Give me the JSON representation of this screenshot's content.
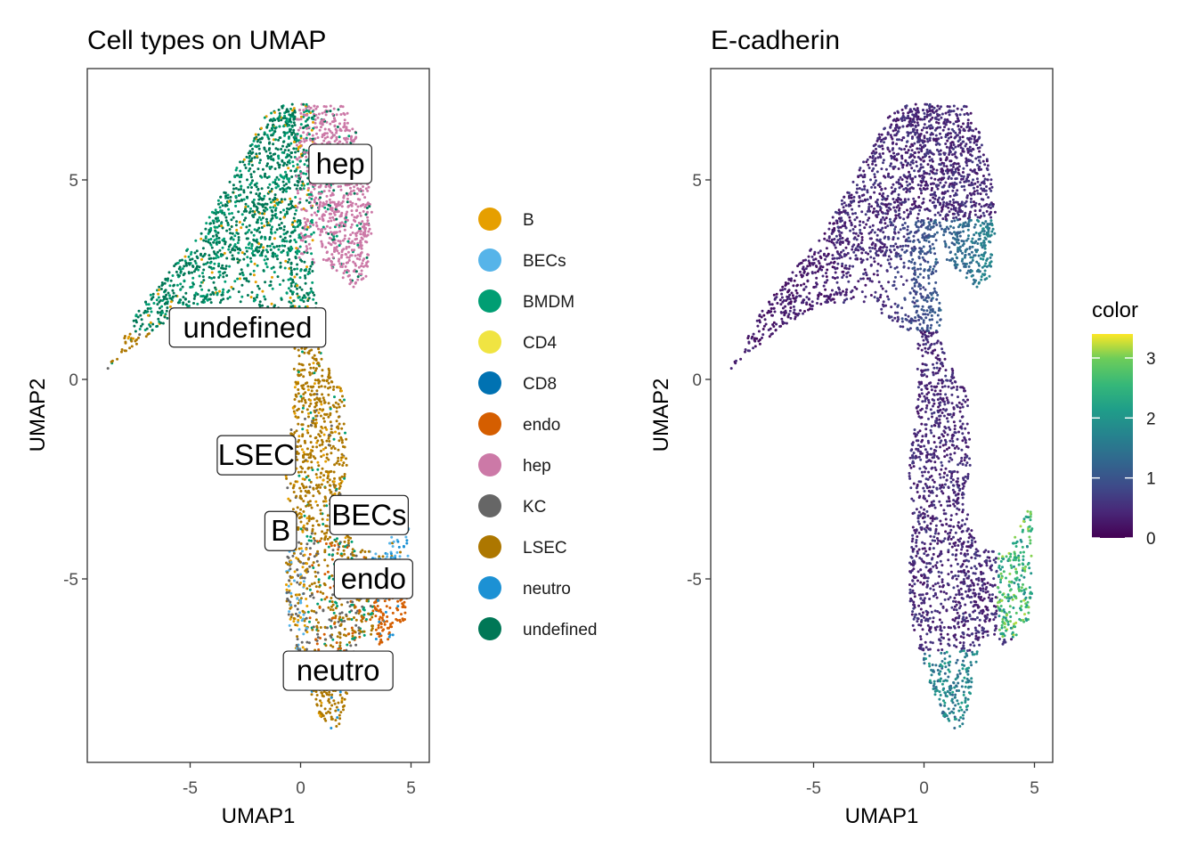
{
  "chart_data": [
    {
      "type": "scatter",
      "title": "Cell types on UMAP",
      "xlabel": "UMAP1",
      "ylabel": "UMAP2",
      "xlim": [
        -9.5,
        5.8
      ],
      "ylim": [
        -9.6,
        7.8
      ],
      "xticks": [
        -5,
        0,
        5
      ],
      "yticks": [
        -5,
        0,
        5
      ],
      "grid": false,
      "legend_position": "right",
      "legend": [
        {
          "name": "B",
          "color": "#E69F00"
        },
        {
          "name": "BECs",
          "color": "#56B4E9"
        },
        {
          "name": "BMDM",
          "color": "#009E73"
        },
        {
          "name": "CD4",
          "color": "#F0E442"
        },
        {
          "name": "CD8",
          "color": "#0072B2"
        },
        {
          "name": "endo",
          "color": "#D55E00"
        },
        {
          "name": "hep",
          "color": "#CC79A7"
        },
        {
          "name": "KC",
          "color": "#666666"
        },
        {
          "name": "LSEC",
          "color": "#AD7700"
        },
        {
          "name": "neutro",
          "color": "#1C91D4"
        },
        {
          "name": "undefined",
          "color": "#007756"
        }
      ],
      "cluster_labels": [
        {
          "text": "hep",
          "x": 1.8,
          "y": 5.4
        },
        {
          "text": "undefined",
          "x": -2.4,
          "y": 1.3
        },
        {
          "text": "LSEC",
          "x": -2.0,
          "y": -1.9
        },
        {
          "text": "BECs",
          "x": 3.1,
          "y": -3.4
        },
        {
          "text": "B",
          "x": -0.9,
          "y": -3.8
        },
        {
          "text": "endo",
          "x": 3.3,
          "y": -5.0
        },
        {
          "text": "neutro",
          "x": 1.7,
          "y": -7.3
        }
      ]
    },
    {
      "type": "scatter",
      "title": "E-cadherin",
      "xlabel": "UMAP1",
      "ylabel": "UMAP2",
      "xlim": [
        -9.5,
        5.8
      ],
      "ylim": [
        -9.6,
        7.8
      ],
      "xticks": [
        -5,
        0,
        5
      ],
      "yticks": [
        -5,
        0,
        5
      ],
      "grid": false,
      "colorbar": {
        "title": "color",
        "min": 0,
        "max": 3.4,
        "ticks": [
          0,
          1,
          2,
          3
        ],
        "colormap": "viridis"
      }
    }
  ]
}
